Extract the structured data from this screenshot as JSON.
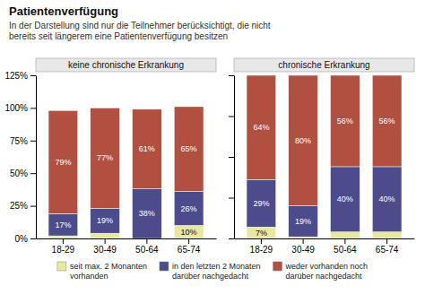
{
  "title": "Patientenverfügung",
  "subtitle": "In der Darstellung sind nur die Teilnehmer berücksichtigt, die nicht\nbereits seit längerem eine Patientenverfügung besitzen",
  "chart_data": [
    {
      "type": "bar",
      "stacked": true,
      "data_labels": true,
      "legend": "bottom",
      "title": "keine chronische Erkrankung",
      "categories": [
        "18-29",
        "30-49",
        "50-64",
        "65-74"
      ],
      "series": [
        {
          "name": "seit max. 2 Monanten\nvorhanden",
          "color": "#e8e8a0",
          "values": [
            2,
            4,
            0,
            10
          ],
          "value_labels": [
            null,
            null,
            null,
            "10%"
          ]
        },
        {
          "name": "in den letzten 2 Monaten\ndarüber nachgedacht",
          "color": "#4c4c8c",
          "values": [
            17,
            19,
            38,
            26
          ],
          "value_labels": [
            "17%",
            "19%",
            "38%",
            "26%"
          ]
        },
        {
          "name": "weder vorhanden noch\ndarüber nachgedacht",
          "color": "#b05040",
          "values": [
            79,
            77,
            61,
            65
          ],
          "value_labels": [
            "79%",
            "77%",
            "61%",
            "65%"
          ]
        }
      ],
      "ylim": [
        0,
        125
      ],
      "yticks": [
        {
          "value": 0,
          "label": "0%"
        },
        {
          "value": 25,
          "label": "25%"
        },
        {
          "value": 50,
          "label": "50%"
        },
        {
          "value": 75,
          "label": "75%"
        },
        {
          "value": 100,
          "label": "100%"
        },
        {
          "value": 125,
          "label": "125%"
        }
      ]
    },
    {
      "type": "bar",
      "stacked": true,
      "data_labels": true,
      "title": "chronische Erkrankung",
      "categories": [
        "18-29",
        "30-49",
        "50-64",
        "65-74"
      ],
      "series": [
        {
          "color": "#e8e8a0",
          "values": [
            7,
            1,
            4,
            4
          ],
          "value_labels": [
            "7%",
            null,
            null,
            null
          ]
        },
        {
          "color": "#4c4c8c",
          "values": [
            29,
            19,
            40,
            40
          ],
          "value_labels": [
            "29%",
            "19%",
            "40%",
            "40%"
          ]
        },
        {
          "color": "#b05040",
          "values": [
            64,
            80,
            56,
            56
          ],
          "value_labels": [
            "64%",
            "80%",
            "56%",
            "56%"
          ]
        }
      ],
      "ylim": [
        0,
        100
      ],
      "yticks": [
        0,
        25,
        50,
        75,
        100
      ],
      "tick_labels": "x"
    }
  ]
}
